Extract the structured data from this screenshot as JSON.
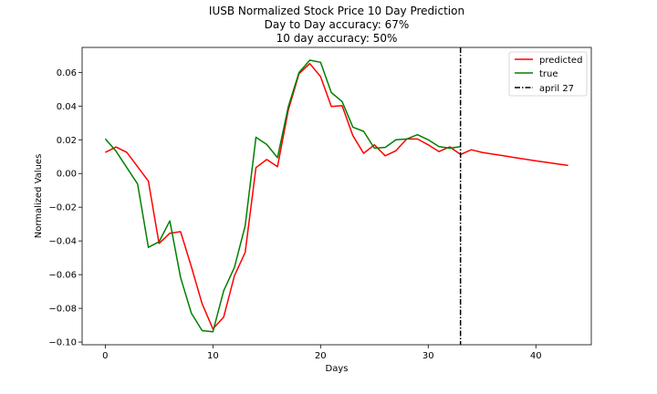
{
  "chart_data": {
    "type": "line",
    "title": "IUSB Normalized Stock Price 10 Day Prediction",
    "subtitle_lines": [
      "Day to Day accuracy: 67%",
      "10 day accuracy: 50%"
    ],
    "xlabel": "Days",
    "ylabel": "Normalized Values",
    "xlim": [
      -2.15,
      45.15
    ],
    "ylim": [
      -0.1016,
      0.0748
    ],
    "xticks": [
      0,
      10,
      20,
      30,
      40
    ],
    "yticks": [
      -0.1,
      -0.08,
      -0.06,
      -0.04,
      -0.02,
      0.0,
      0.02,
      0.04,
      0.06
    ],
    "ytick_labels": [
      "−0.10",
      "−0.08",
      "−0.06",
      "−0.04",
      "−0.02",
      "0.00",
      "0.02",
      "0.04",
      "0.06"
    ],
    "grid": false,
    "legend_position": "top-right",
    "series": [
      {
        "name": "predicted",
        "color": "#ff0000",
        "x": [
          0,
          1,
          2,
          3,
          4,
          5,
          6,
          7,
          8,
          9,
          10,
          11,
          12,
          13,
          14,
          15,
          16,
          17,
          18,
          19,
          20,
          21,
          22,
          23,
          24,
          25,
          26,
          27,
          28,
          29,
          30,
          31,
          32,
          33,
          34,
          35,
          36,
          37,
          38,
          39,
          40,
          41,
          42,
          43
        ],
        "y": [
          0.0125,
          0.0157,
          0.0125,
          0.004,
          -0.0045,
          -0.0415,
          -0.0355,
          -0.0345,
          -0.0553,
          -0.0773,
          -0.0922,
          -0.0852,
          -0.0607,
          -0.0468,
          0.0035,
          0.0083,
          0.004,
          0.0375,
          0.0592,
          0.0652,
          0.0575,
          0.0398,
          0.0402,
          0.0225,
          0.012,
          0.017,
          0.0105,
          0.0135,
          0.0205,
          0.0205,
          0.017,
          0.013,
          0.0158,
          0.0113,
          0.0141,
          0.0125,
          0.0115,
          0.0105,
          0.0095,
          0.0085,
          0.0075,
          0.0066,
          0.0057,
          0.0048
        ]
      },
      {
        "name": "true",
        "color": "#008000",
        "x": [
          0,
          1,
          2,
          3,
          4,
          5,
          6,
          7,
          8,
          9,
          10,
          11,
          12,
          13,
          14,
          15,
          16,
          17,
          18,
          19,
          20,
          21,
          22,
          23,
          24,
          25,
          26,
          27,
          28,
          29,
          30,
          31,
          32,
          33
        ],
        "y": [
          0.0206,
          0.0132,
          0.0035,
          -0.0062,
          -0.0438,
          -0.0405,
          -0.0281,
          -0.0617,
          -0.0829,
          -0.0932,
          -0.0939,
          -0.0696,
          -0.0557,
          -0.031,
          0.0215,
          0.0172,
          0.0094,
          0.0395,
          0.0599,
          0.0672,
          0.066,
          0.048,
          0.0427,
          0.0275,
          0.025,
          0.015,
          0.0155,
          0.02,
          0.0205,
          0.023,
          0.02,
          0.016,
          0.015,
          0.016
        ]
      }
    ],
    "vline": {
      "name": "april 27",
      "x": 33,
      "color": "#000000"
    }
  }
}
